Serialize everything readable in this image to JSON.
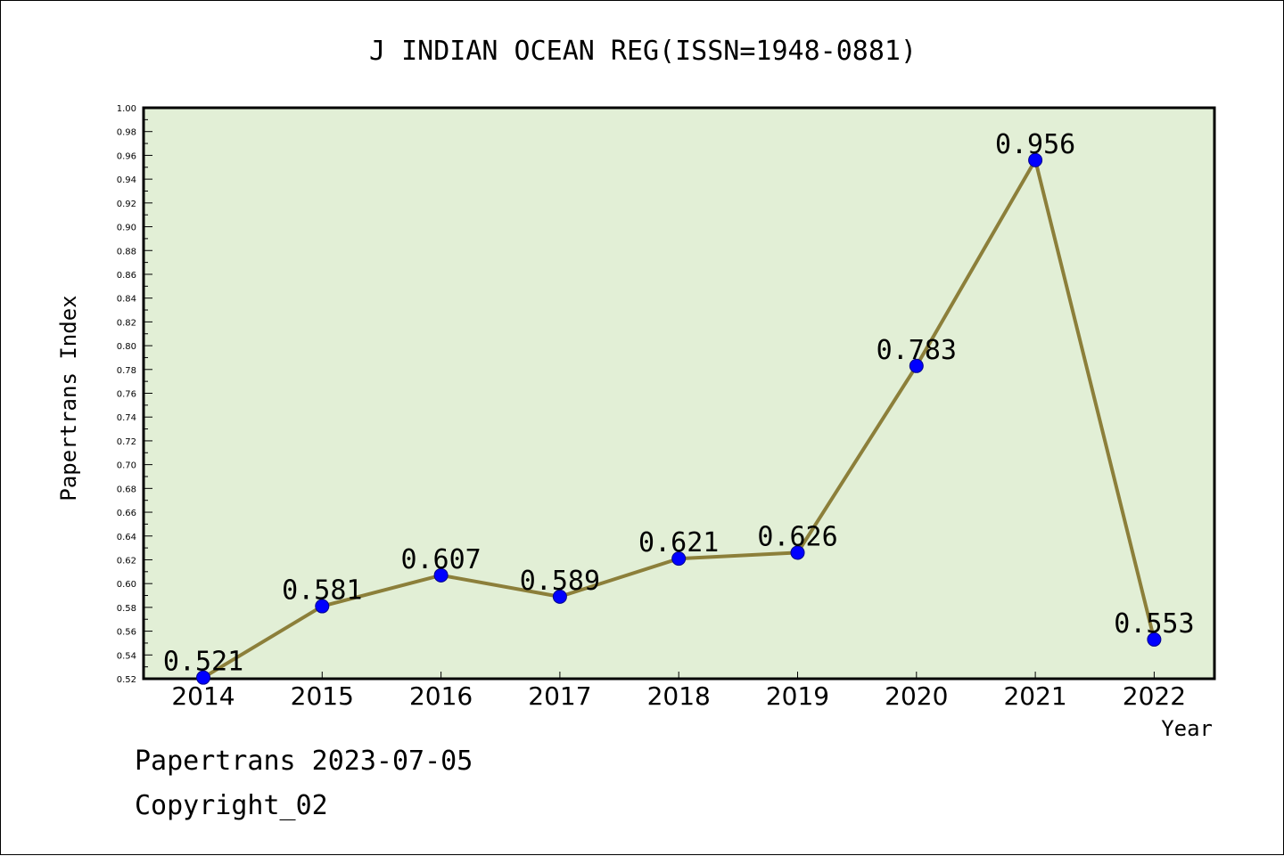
{
  "chart_data": {
    "type": "line",
    "title": "J INDIAN OCEAN REG(ISSN=1948-0881)",
    "xlabel": "Year",
    "ylabel": "Papertrans Index",
    "categories": [
      "2014",
      "2015",
      "2016",
      "2017",
      "2018",
      "2019",
      "2020",
      "2021",
      "2022"
    ],
    "values": [
      0.521,
      0.581,
      0.607,
      0.589,
      0.621,
      0.626,
      0.783,
      0.956,
      0.553
    ],
    "data_labels": [
      "0.521",
      "0.581",
      "0.607",
      "0.589",
      "0.621",
      "0.626",
      "0.783",
      "0.956",
      "0.553"
    ],
    "ylim": [
      0.52,
      1.0
    ],
    "yticks": [
      "0.52",
      "0.54",
      "0.56",
      "0.58",
      "0.60",
      "0.62",
      "0.64",
      "0.66",
      "0.68",
      "0.70",
      "0.72",
      "0.74",
      "0.76",
      "0.78",
      "0.80",
      "0.82",
      "0.84",
      "0.86",
      "0.88",
      "0.90",
      "0.92",
      "0.94",
      "0.96",
      "0.98",
      "1.00"
    ],
    "grid": false,
    "colors": {
      "plot_background": "#e2efd6",
      "line": "#8c7f3a",
      "marker": "#0000ff"
    }
  },
  "footer": {
    "line1": "Papertrans 2023-07-05",
    "line2": "Copyright_02"
  }
}
